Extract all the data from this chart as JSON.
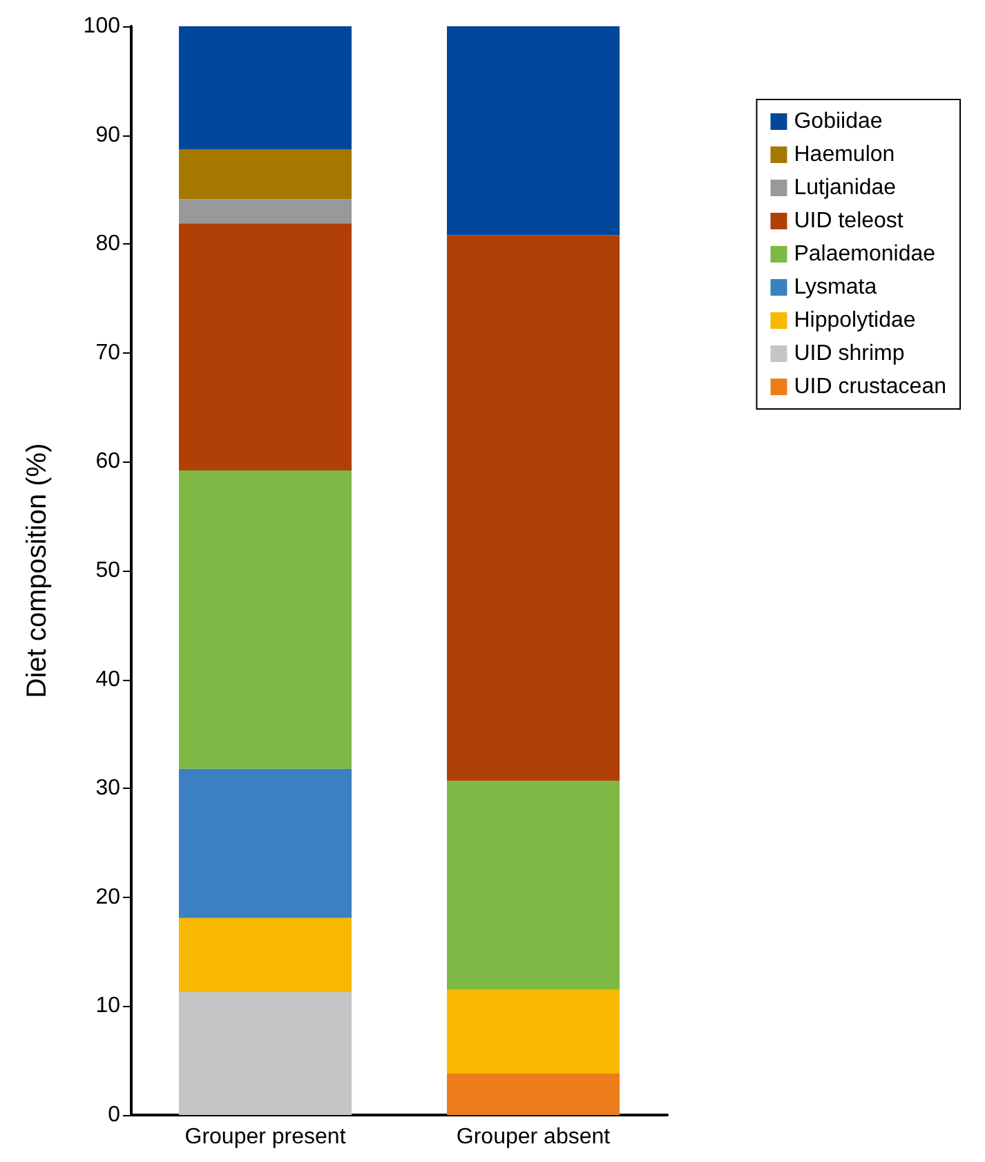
{
  "chart_data": {
    "type": "bar",
    "stacked": true,
    "ylabel": "Diet composition (%)",
    "categories": [
      "Grouper present",
      "Grouper absent"
    ],
    "series": [
      {
        "name": "UID crustacean",
        "color": "#ed7d1a",
        "values": [
          0,
          3.8
        ]
      },
      {
        "name": "UID shrimp",
        "color": "#c4c5c7",
        "values": [
          11.3,
          0
        ]
      },
      {
        "name": "Hippolytidae",
        "color": "#f8b800",
        "values": [
          6.8,
          7.7
        ]
      },
      {
        "name": "Lysmata",
        "color": "#3b80c3",
        "values": [
          13.7,
          0
        ]
      },
      {
        "name": "Palaemonidae",
        "color": "#7eb945",
        "values": [
          27.4,
          19.2
        ]
      },
      {
        "name": "UID teleost",
        "color": "#b04005",
        "values": [
          22.7,
          50.1
        ]
      },
      {
        "name": "Lutjanidae",
        "color": "#99989b",
        "values": [
          2.2,
          0
        ]
      },
      {
        "name": "Haemulon",
        "color": "#a57800",
        "values": [
          4.6,
          0
        ]
      },
      {
        "name": "Gobiidae",
        "color": "#00479b",
        "values": [
          11.3,
          19.2
        ]
      }
    ],
    "ylim": [
      0,
      100
    ],
    "yticks": [
      0,
      10,
      20,
      30,
      40,
      50,
      60,
      70,
      80,
      90,
      100
    ],
    "grid": false,
    "legend": "right"
  }
}
